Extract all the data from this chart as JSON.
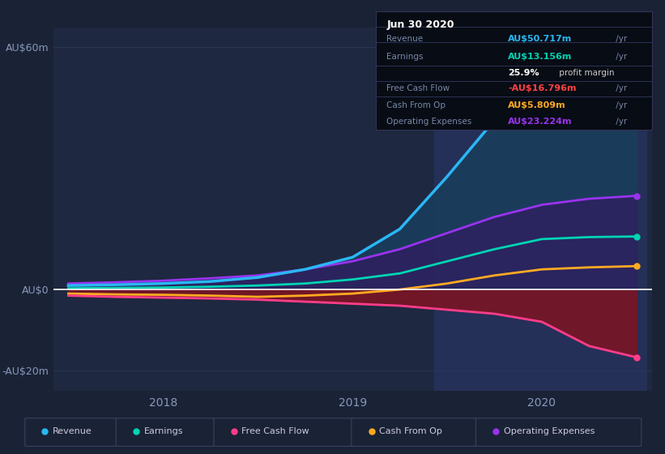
{
  "background_color": "#1a2235",
  "plot_bg_color": "#1e2840",
  "grid_color": "#2a3555",
  "title": "earnings-and-revenue-history",
  "x_years": [
    2017.5,
    2017.75,
    2018.0,
    2018.25,
    2018.5,
    2018.75,
    2019.0,
    2019.25,
    2019.5,
    2019.75,
    2020.0,
    2020.25,
    2020.5
  ],
  "revenue": [
    1.0,
    1.2,
    1.5,
    2.0,
    3.0,
    5.0,
    8.0,
    15.0,
    28.0,
    42.0,
    50.0,
    51.0,
    50.717
  ],
  "earnings": [
    0.3,
    0.4,
    0.5,
    0.7,
    1.0,
    1.5,
    2.5,
    4.0,
    7.0,
    10.0,
    12.5,
    13.0,
    13.156
  ],
  "free_cash_flow": [
    -1.5,
    -1.8,
    -2.0,
    -2.2,
    -2.5,
    -3.0,
    -3.5,
    -4.0,
    -5.0,
    -6.0,
    -8.0,
    -14.0,
    -16.796
  ],
  "cash_from_op": [
    -1.0,
    -1.2,
    -1.3,
    -1.5,
    -1.8,
    -1.5,
    -1.0,
    0.0,
    1.5,
    3.5,
    5.0,
    5.5,
    5.809
  ],
  "operating_expenses": [
    1.5,
    1.8,
    2.2,
    2.8,
    3.5,
    5.0,
    7.0,
    10.0,
    14.0,
    18.0,
    21.0,
    22.5,
    23.224
  ],
  "revenue_color": "#2ab7f5",
  "earnings_color": "#00d4b4",
  "free_cash_flow_color": "#ff3d8a",
  "cash_from_op_color": "#ffaa22",
  "operating_expenses_color": "#9933ee",
  "shade_x_start": 2019.43,
  "shade_x_end": 2020.55,
  "shade_color": "#243058",
  "ylim": [
    -25,
    65
  ],
  "yticks": [
    -20,
    0,
    60
  ],
  "ytick_labels": [
    "-AU$20m",
    "AU$0",
    "AU$60m"
  ],
  "xlim": [
    2017.42,
    2020.58
  ],
  "xticks": [
    2018.0,
    2019.0,
    2020.0
  ],
  "xtick_labels": [
    "2018",
    "2019",
    "2020"
  ],
  "info_box": {
    "date": "Jun 30 2020",
    "revenue_label": "Revenue",
    "revenue_val": "AU$50.717m",
    "revenue_suffix": " /yr",
    "revenue_color": "#2ab7f5",
    "earnings_label": "Earnings",
    "earnings_val": "AU$13.156m",
    "earnings_suffix": " /yr",
    "earnings_color": "#00d4b4",
    "profit_margin": "25.9%",
    "profit_margin_suffix": " profit margin",
    "fcf_label": "Free Cash Flow",
    "fcf_val": "-AU$16.796m",
    "fcf_suffix": " /yr",
    "fcf_color": "#ff4444",
    "cfop_label": "Cash From Op",
    "cfop_val": "AU$5.809m",
    "cfop_suffix": " /yr",
    "cfop_color": "#ffaa22",
    "opex_label": "Operating Expenses",
    "opex_val": "AU$23.224m",
    "opex_suffix": " /yr",
    "opex_color": "#9933ee"
  },
  "legend_items": [
    {
      "label": "Revenue",
      "color": "#2ab7f5"
    },
    {
      "label": "Earnings",
      "color": "#00d4b4"
    },
    {
      "label": "Free Cash Flow",
      "color": "#ff3d8a"
    },
    {
      "label": "Cash From Op",
      "color": "#ffaa22"
    },
    {
      "label": "Operating Expenses",
      "color": "#9933ee"
    }
  ]
}
